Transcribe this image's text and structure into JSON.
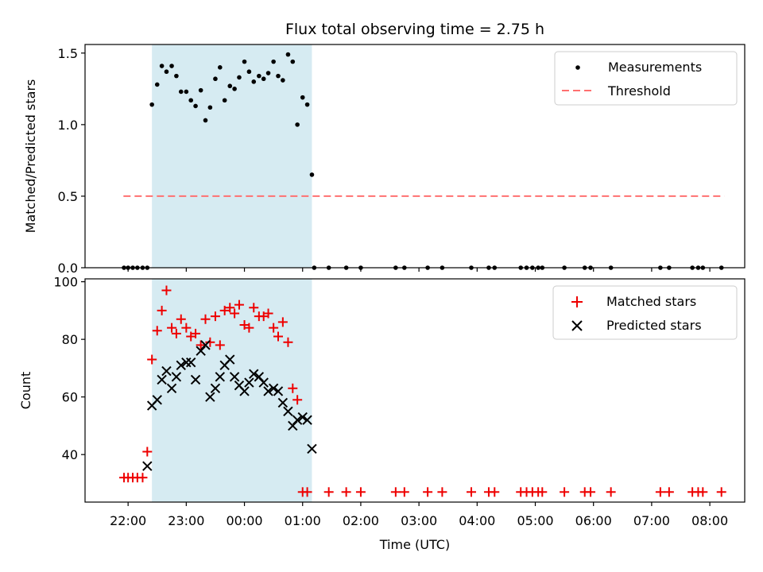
{
  "title": "Flux total observing time = 2.75 h",
  "chart_data": [
    {
      "type": "scatter",
      "panel": "top",
      "ylabel": "Matched/Predicted stars",
      "ylim": [
        0,
        1.56
      ],
      "yticks": [
        0.0,
        0.5,
        1.0,
        1.5
      ],
      "ytick_labels": [
        "0.0",
        "0.5",
        "1.0",
        "1.5"
      ],
      "threshold": {
        "name": "Threshold",
        "value": 0.5,
        "x_start": 21.92,
        "x_end": 32.25,
        "color": "#ff7070"
      },
      "shaded_interval": {
        "x_start": 22.41,
        "x_end": 25.16,
        "color": "#add8e6"
      },
      "legend": [
        "Measurements",
        "Threshold"
      ],
      "series": [
        {
          "name": "Measurements",
          "color": "#000000",
          "points": [
            [
              21.93,
              0
            ],
            [
              22.0,
              0
            ],
            [
              22.08,
              0
            ],
            [
              22.16,
              0
            ],
            [
              22.25,
              0
            ],
            [
              22.33,
              0
            ],
            [
              22.41,
              1.14
            ],
            [
              22.5,
              1.28
            ],
            [
              22.58,
              1.41
            ],
            [
              22.66,
              1.37
            ],
            [
              22.75,
              1.41
            ],
            [
              22.83,
              1.34
            ],
            [
              22.91,
              1.23
            ],
            [
              23.0,
              1.23
            ],
            [
              23.08,
              1.17
            ],
            [
              23.16,
              1.13
            ],
            [
              23.25,
              1.24
            ],
            [
              23.33,
              1.03
            ],
            [
              23.41,
              1.12
            ],
            [
              23.5,
              1.32
            ],
            [
              23.58,
              1.4
            ],
            [
              23.66,
              1.17
            ],
            [
              23.75,
              1.27
            ],
            [
              23.83,
              1.25
            ],
            [
              23.91,
              1.33
            ],
            [
              24.0,
              1.44
            ],
            [
              24.08,
              1.37
            ],
            [
              24.16,
              1.3
            ],
            [
              24.25,
              1.34
            ],
            [
              24.33,
              1.32
            ],
            [
              24.41,
              1.36
            ],
            [
              24.5,
              1.44
            ],
            [
              24.58,
              1.34
            ],
            [
              24.66,
              1.31
            ],
            [
              24.75,
              1.49
            ],
            [
              24.83,
              1.44
            ],
            [
              24.91,
              1.0
            ],
            [
              25.0,
              1.19
            ],
            [
              25.08,
              1.14
            ],
            [
              25.16,
              0.65
            ],
            [
              25.2,
              0
            ],
            [
              25.45,
              0
            ],
            [
              25.75,
              0
            ],
            [
              26.0,
              0
            ],
            [
              26.6,
              0
            ],
            [
              26.75,
              0
            ],
            [
              27.15,
              0
            ],
            [
              27.4,
              0
            ],
            [
              27.9,
              0
            ],
            [
              28.2,
              0
            ],
            [
              28.3,
              0
            ],
            [
              28.75,
              0
            ],
            [
              28.85,
              0
            ],
            [
              28.95,
              0
            ],
            [
              29.05,
              0
            ],
            [
              29.12,
              0
            ],
            [
              29.5,
              0
            ],
            [
              29.85,
              0
            ],
            [
              29.95,
              0
            ],
            [
              30.3,
              0
            ],
            [
              31.15,
              0
            ],
            [
              31.3,
              0
            ],
            [
              31.7,
              0
            ],
            [
              31.8,
              0
            ],
            [
              31.88,
              0
            ],
            [
              32.2,
              0
            ]
          ]
        }
      ]
    },
    {
      "type": "scatter",
      "panel": "bottom",
      "xlabel": "Time (UTC)",
      "ylabel": "Count",
      "xlim": [
        21.26,
        32.6
      ],
      "ylim": [
        23.5,
        101
      ],
      "yticks": [
        40,
        60,
        80,
        100
      ],
      "ytick_labels": [
        "40",
        "60",
        "80",
        "100"
      ],
      "xticks": [
        22,
        23,
        24,
        25,
        26,
        27,
        28,
        29,
        30,
        31,
        32
      ],
      "xtick_labels": [
        "22:00",
        "23:00",
        "00:00",
        "01:00",
        "02:00",
        "03:00",
        "04:00",
        "05:00",
        "06:00",
        "07:00",
        "08:00"
      ],
      "shaded_interval": {
        "x_start": 22.41,
        "x_end": 25.16,
        "color": "#add8e6"
      },
      "legend": [
        "Matched stars",
        "Predicted stars"
      ],
      "series": [
        {
          "name": "Matched stars",
          "marker": "plus",
          "color": "#ee0000",
          "points": [
            [
              21.93,
              32
            ],
            [
              22.0,
              32
            ],
            [
              22.08,
              32
            ],
            [
              22.16,
              32
            ],
            [
              22.25,
              32
            ],
            [
              22.33,
              41
            ],
            [
              22.41,
              73
            ],
            [
              22.5,
              83
            ],
            [
              22.58,
              90
            ],
            [
              22.66,
              97
            ],
            [
              22.75,
              84
            ],
            [
              22.83,
              82
            ],
            [
              22.91,
              87
            ],
            [
              23.0,
              84
            ],
            [
              23.08,
              81
            ],
            [
              23.16,
              82
            ],
            [
              23.25,
              78
            ],
            [
              23.33,
              87
            ],
            [
              23.41,
              79
            ],
            [
              23.5,
              88
            ],
            [
              23.58,
              78
            ],
            [
              23.66,
              90
            ],
            [
              23.75,
              91
            ],
            [
              23.83,
              89
            ],
            [
              23.91,
              92
            ],
            [
              24.0,
              85
            ],
            [
              24.08,
              84
            ],
            [
              24.16,
              91
            ],
            [
              24.25,
              88
            ],
            [
              24.33,
              88
            ],
            [
              24.41,
              89
            ],
            [
              24.5,
              84
            ],
            [
              24.58,
              81
            ],
            [
              24.66,
              86
            ],
            [
              24.75,
              79
            ],
            [
              24.83,
              63
            ],
            [
              24.91,
              59
            ],
            [
              25.0,
              27
            ],
            [
              25.08,
              27
            ],
            [
              25.45,
              27
            ],
            [
              25.75,
              27
            ],
            [
              26.0,
              27
            ],
            [
              26.6,
              27
            ],
            [
              26.75,
              27
            ],
            [
              27.15,
              27
            ],
            [
              27.4,
              27
            ],
            [
              27.9,
              27
            ],
            [
              28.2,
              27
            ],
            [
              28.3,
              27
            ],
            [
              28.75,
              27
            ],
            [
              28.85,
              27
            ],
            [
              28.95,
              27
            ],
            [
              29.05,
              27
            ],
            [
              29.12,
              27
            ],
            [
              29.5,
              27
            ],
            [
              29.85,
              27
            ],
            [
              29.95,
              27
            ],
            [
              30.3,
              27
            ],
            [
              31.15,
              27
            ],
            [
              31.3,
              27
            ],
            [
              31.7,
              27
            ],
            [
              31.8,
              27
            ],
            [
              31.88,
              27
            ],
            [
              32.2,
              27
            ]
          ]
        },
        {
          "name": "Predicted stars",
          "marker": "x",
          "color": "#000000",
          "points": [
            [
              22.33,
              36
            ],
            [
              22.41,
              57
            ],
            [
              22.5,
              59
            ],
            [
              22.58,
              66
            ],
            [
              22.66,
              69
            ],
            [
              22.75,
              63
            ],
            [
              22.83,
              67
            ],
            [
              22.91,
              71
            ],
            [
              23.0,
              72
            ],
            [
              23.08,
              72
            ],
            [
              23.16,
              66
            ],
            [
              23.25,
              76
            ],
            [
              23.33,
              78
            ],
            [
              23.41,
              60
            ],
            [
              23.5,
              63
            ],
            [
              23.58,
              67
            ],
            [
              23.66,
              71
            ],
            [
              23.75,
              73
            ],
            [
              23.83,
              67
            ],
            [
              23.91,
              64
            ],
            [
              24.0,
              62
            ],
            [
              24.08,
              65
            ],
            [
              24.16,
              68
            ],
            [
              24.25,
              67
            ],
            [
              24.33,
              65
            ],
            [
              24.41,
              62
            ],
            [
              24.5,
              63
            ],
            [
              24.58,
              62
            ],
            [
              24.66,
              58
            ],
            [
              24.75,
              55
            ],
            [
              24.83,
              50
            ],
            [
              24.91,
              52
            ],
            [
              25.0,
              53
            ],
            [
              25.08,
              52
            ],
            [
              25.16,
              42
            ]
          ]
        }
      ]
    }
  ]
}
